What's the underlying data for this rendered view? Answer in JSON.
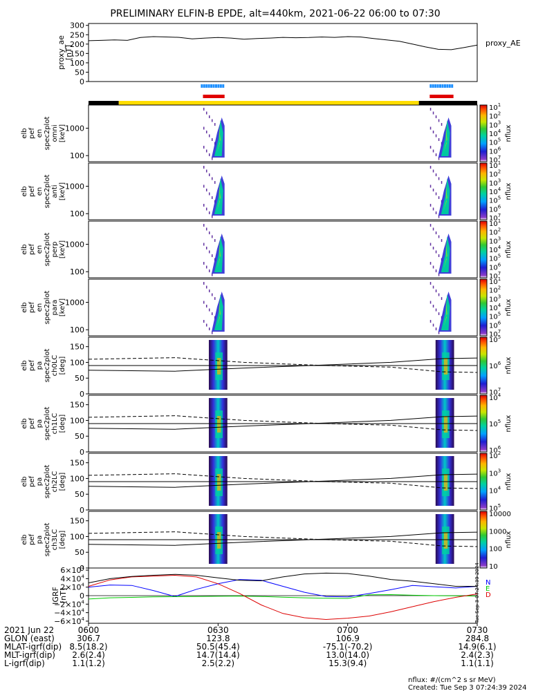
{
  "title": "PRELIMINARY ELFIN-B EPDE, alt=440km, 2021-06-22 06:00 to 07:30",
  "colors": {
    "black": "#000000",
    "yellow": "#ffdd00",
    "blue_bar": "#1e90ff",
    "red_bar": "#e00000",
    "bx": "#0000ff",
    "by": "#00cc00",
    "bz": "#dd0000"
  },
  "time": {
    "start_min": 0,
    "end_min": 90,
    "ticks": [
      {
        "min": 0,
        "label": "0600"
      },
      {
        "min": 30,
        "label": "0630"
      },
      {
        "min": 60,
        "label": "0700"
      },
      {
        "min": 90,
        "label": "0730"
      }
    ]
  },
  "chart_data": [
    {
      "type": "line",
      "name": "proxy_ae",
      "ylabel": [
        "proxy_ae",
        "[nT]"
      ],
      "legend": "proxy_AE",
      "ylim": [
        0,
        310
      ],
      "yticks": [
        "300",
        "250",
        "200",
        "150",
        "100",
        "50",
        "0"
      ],
      "ytick_values": [
        300,
        250,
        200,
        150,
        100,
        50,
        0
      ],
      "x": [
        0,
        3,
        6,
        9,
        12,
        15,
        18,
        21,
        24,
        27,
        30,
        33,
        36,
        39,
        42,
        45,
        48,
        51,
        54,
        57,
        60,
        63,
        66,
        69,
        72,
        75,
        78,
        81,
        84,
        87,
        90
      ],
      "values": [
        218,
        220,
        222,
        220,
        235,
        240,
        238,
        236,
        228,
        232,
        235,
        232,
        226,
        230,
        232,
        236,
        234,
        235,
        238,
        236,
        240,
        238,
        230,
        222,
        215,
        200,
        185,
        172,
        170,
        182,
        195
      ]
    },
    {
      "type": "heatmap",
      "name": "omni",
      "ylabel": [
        "elb",
        "pef",
        "en",
        "spec2plot",
        "omni",
        "[keV]"
      ],
      "yscale": "log",
      "yticks": [
        "1000",
        "100"
      ],
      "ytick_values": [
        1000,
        100
      ],
      "ylim": [
        60,
        7000
      ],
      "colorbar": {
        "label": "nflux",
        "ticks": [
          "10",
          "10",
          "10",
          "10",
          "10",
          "10",
          "10"
        ],
        "exps": [
          "1",
          "2",
          "3",
          "4",
          "5",
          "6",
          "7"
        ]
      }
    },
    {
      "type": "heatmap",
      "name": "anti",
      "ylabel": [
        "elb",
        "pef",
        "en",
        "spec2plot",
        "anti",
        "[keV]"
      ],
      "yscale": "log",
      "yticks": [
        "1000",
        "100"
      ],
      "ytick_values": [
        1000,
        100
      ],
      "ylim": [
        60,
        7000
      ],
      "colorbar": {
        "label": "nflux",
        "ticks": [
          "10",
          "10",
          "10",
          "10",
          "10",
          "10",
          "10"
        ],
        "exps": [
          "1",
          "2",
          "3",
          "4",
          "5",
          "6",
          "7"
        ]
      }
    },
    {
      "type": "heatmap",
      "name": "perp",
      "ylabel": [
        "elb",
        "pef",
        "en",
        "spec2plot",
        "perp",
        "[keV]"
      ],
      "yscale": "log",
      "yticks": [
        "1000",
        "100"
      ],
      "ytick_values": [
        1000,
        100
      ],
      "ylim": [
        60,
        7000
      ],
      "colorbar": {
        "label": "nflux",
        "ticks": [
          "10",
          "10",
          "10",
          "10",
          "10",
          "10",
          "10"
        ],
        "exps": [
          "1",
          "2",
          "3",
          "4",
          "5",
          "6",
          "7"
        ]
      }
    },
    {
      "type": "heatmap",
      "name": "para",
      "ylabel": [
        "elb",
        "pef",
        "en",
        "spec2plot",
        "para",
        "[keV]"
      ],
      "yscale": "log",
      "yticks": [
        "1000",
        "100"
      ],
      "ytick_values": [
        1000,
        100
      ],
      "ylim": [
        60,
        7000
      ],
      "colorbar": {
        "label": "nflux",
        "ticks": [
          "10",
          "10",
          "10",
          "10",
          "10",
          "10",
          "10"
        ],
        "exps": [
          "1",
          "2",
          "3",
          "4",
          "5",
          "6",
          "7"
        ]
      }
    },
    {
      "type": "heatmap",
      "name": "ch0LC",
      "ylabel": [
        "elb",
        "pef",
        "pa",
        "spec2plot",
        "ch0LC",
        "[deg]"
      ],
      "yscale": "linear",
      "yticks": [
        "150",
        "100",
        "50",
        "0"
      ],
      "ytick_values": [
        150,
        100,
        50,
        0
      ],
      "ylim": [
        0,
        180
      ],
      "colorbar": {
        "label": "nflux",
        "ticks": [
          "10",
          "10",
          "10"
        ],
        "exps": [
          "5",
          "6",
          "7"
        ]
      }
    },
    {
      "type": "heatmap",
      "name": "ch1LC",
      "ylabel": [
        "elb",
        "pef",
        "pa",
        "spec2plot",
        "ch1LC",
        "[deg]"
      ],
      "yscale": "linear",
      "yticks": [
        "150",
        "100",
        "50",
        "0"
      ],
      "ytick_values": [
        150,
        100,
        50,
        0
      ],
      "ylim": [
        0,
        180
      ],
      "colorbar": {
        "label": "nflux",
        "ticks": [
          "10",
          "10",
          "10"
        ],
        "exps": [
          "4",
          "5",
          "6"
        ]
      }
    },
    {
      "type": "heatmap",
      "name": "ch2LC",
      "ylabel": [
        "elb",
        "pef",
        "pa",
        "spec2plot",
        "ch2LC",
        "[deg]"
      ],
      "yscale": "linear",
      "yticks": [
        "150",
        "100",
        "50",
        "0"
      ],
      "ytick_values": [
        150,
        100,
        50,
        0
      ],
      "ylim": [
        0,
        180
      ],
      "colorbar": {
        "label": "nflux",
        "ticks": [
          "10",
          "10",
          "10",
          "10"
        ],
        "exps": [
          "2",
          "3",
          "4",
          "5"
        ]
      }
    },
    {
      "type": "heatmap",
      "name": "ch3LC",
      "ylabel": [
        "elb",
        "pef",
        "pa",
        "spec2plot",
        "ch3LC",
        "[deg]"
      ],
      "yscale": "linear",
      "yticks": [
        "150",
        "100",
        "50",
        "0"
      ],
      "ytick_values": [
        150,
        100,
        50,
        0
      ],
      "ylim": [
        0,
        180
      ],
      "colorbar": {
        "label": "nflux",
        "ticks": [
          "10000",
          "1000",
          "100",
          "10"
        ],
        "exps": [
          "",
          "",
          "",
          ""
        ]
      }
    },
    {
      "type": "line",
      "name": "igrf",
      "ylabel": [
        "IGRF",
        "[nT]"
      ],
      "ylim": [
        -65000,
        65000
      ],
      "yticks": [
        "6×10",
        "4×10",
        "2×10",
        "0",
        "−2×10",
        "−4×10",
        "−6×10"
      ],
      "ytick_values": [
        60000,
        40000,
        20000,
        0,
        -20000,
        -40000,
        -60000
      ],
      "legend": [
        "N",
        "E",
        "D"
      ],
      "legend_colors": [
        "#0000ff",
        "#00cc00",
        "#dd0000"
      ],
      "x": [
        0,
        5,
        10,
        15,
        20,
        25,
        30,
        35,
        40,
        45,
        50,
        55,
        60,
        65,
        70,
        75,
        80,
        85,
        90
      ],
      "series": [
        {
          "name": "N",
          "color": "#0000ff",
          "values": [
            20000,
            25000,
            24000,
            12000,
            -2000,
            15000,
            28000,
            38000,
            36000,
            22000,
            8000,
            -2000,
            -3000,
            5000,
            14000,
            24000,
            21000,
            18000,
            22000
          ]
        },
        {
          "name": "E",
          "color": "#00cc00",
          "values": [
            -8000,
            -5000,
            -4000,
            -3000,
            -2500,
            -2000,
            -1500,
            -1000,
            -2000,
            -3500,
            -5000,
            -6000,
            -6500,
            2000,
            2500,
            1000,
            0,
            -500,
            -1000
          ]
        },
        {
          "name": "D",
          "color": "#dd0000",
          "values": [
            22000,
            37000,
            44000,
            46000,
            48000,
            44000,
            28000,
            5000,
            -22000,
            -42000,
            -52000,
            -56000,
            -53000,
            -48000,
            -38000,
            -26000,
            -14000,
            -4000,
            4000
          ]
        },
        {
          "name": "Total",
          "color": "#000000",
          "values": [
            30000,
            40000,
            45000,
            48000,
            50000,
            48000,
            42000,
            36000,
            35000,
            44000,
            51000,
            53000,
            52000,
            46000,
            38000,
            34000,
            28000,
            22000,
            22000
          ]
        }
      ]
    }
  ],
  "orbit_info": {
    "date_label": "2021 Jun 22",
    "rows": [
      {
        "label": "GLON (east)",
        "values": [
          "306.7",
          "123.8",
          "106.9",
          "284.8"
        ]
      },
      {
        "label": "MLAT-igrf(dip)",
        "values": [
          "8.5(18.2)",
          "50.5(45.4)",
          "-75.1(-70.2)",
          "14.9(6.1)"
        ]
      },
      {
        "label": "MLT-igrf(dip)",
        "values": [
          "2.6(2.4)",
          "14.7(14.4)",
          "13.0(14.0)",
          "2.4(2.3)"
        ]
      },
      {
        "label": "L-igrf(dip)",
        "values": [
          "1.1(1.2)",
          "2.5(2.2)",
          "15.3(9.4)",
          "1.1(1.1)"
        ]
      }
    ]
  },
  "footer": {
    "units": "nflux: #/(cm^2 s sr MeV)",
    "created": "Created: Tue Sep  3 07:24:39 2024",
    "stamp": "Tue Sep  3 07:24:39 2024"
  }
}
